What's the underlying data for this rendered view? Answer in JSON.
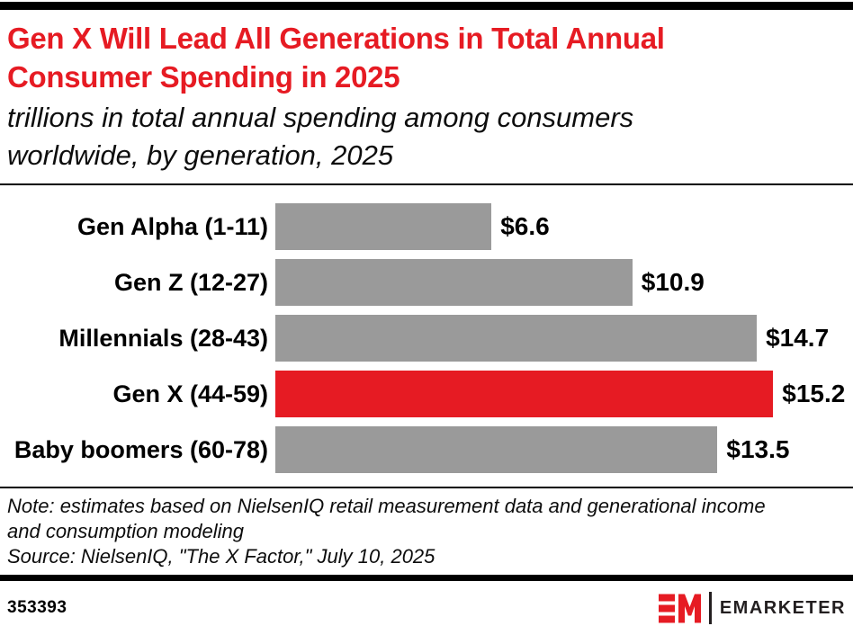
{
  "header": {
    "title": "Gen X Will Lead All Generations in Total Annual\nConsumer Spending in 2025",
    "subtitle": "trillions in total annual spending among consumers\nworldwide, by generation, 2025"
  },
  "chart_data": {
    "type": "bar",
    "orientation": "horizontal",
    "title": "Gen X Will Lead All Generations in Total Annual Consumer Spending in 2025",
    "subtitle": "trillions in total annual spending among consumers worldwide, by generation, 2025",
    "unit": "USD trillions",
    "categories": [
      "Gen Alpha (1-11)",
      "Gen Z (12-27)",
      "Millennials (28-43)",
      "Gen X (44-59)",
      "Baby boomers (60-78)"
    ],
    "values": [
      6.6,
      10.9,
      14.7,
      15.2,
      13.5
    ],
    "value_labels": [
      "$6.6",
      "$10.9",
      "$14.7",
      "$15.2",
      "$13.5"
    ],
    "highlight_index": 3,
    "xlim": [
      0,
      15.2
    ],
    "grid": false,
    "legend": "none"
  },
  "notes": {
    "note": "Note: estimates based on NielsenIQ retail measurement data and generational income\nand consumption modeling",
    "source": "Source: NielsenIQ, \"The X Factor,\" July 10, 2025"
  },
  "footer": {
    "chart_id": "353393",
    "brand_name": "EMARKETER"
  },
  "colors": {
    "accent_red": "#e61b23",
    "bar_gray": "#9a9a9a",
    "logo_dark": "#231f20"
  }
}
